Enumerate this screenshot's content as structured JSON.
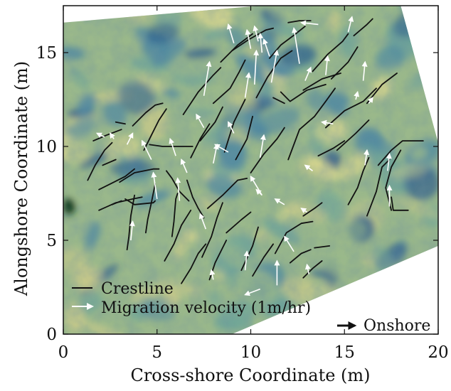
{
  "chart_data": {
    "type": "vector-field",
    "title": "",
    "xlabel": "Cross-shore Coordinate (m)",
    "ylabel": "Alongshore Coordinate (m)",
    "xlim": [
      0,
      20
    ],
    "ylim": [
      0,
      17.5
    ],
    "xticks": [
      "0",
      "5",
      "10",
      "15",
      "20"
    ],
    "yticks": [
      "0",
      "5",
      "10",
      "15"
    ],
    "background": {
      "description": "false-color image of bedforms, blue-green-yellow texture",
      "colors": [
        "#2e5d8c",
        "#4c87a2",
        "#6ba39a",
        "#9ab88b",
        "#c9c98a",
        "#d8d68f",
        "#10381f"
      ]
    },
    "image_domain": {
      "polygon": [
        [
          0,
          16.6
        ],
        [
          10.5,
          17.5
        ],
        [
          18,
          17.5
        ],
        [
          20,
          10.2
        ],
        [
          20,
          4.7
        ],
        [
          9,
          0
        ],
        [
          0,
          0
        ]
      ]
    },
    "legend": {
      "placement": "lower-left",
      "entries": [
        {
          "label": "Crestline",
          "style": "black-line"
        },
        {
          "label": "Migration velocity (1m/hr)",
          "style": "white-arrow"
        }
      ]
    },
    "annotation": {
      "label": "Onshore",
      "placement": "lower-right",
      "style": "black-arrow"
    },
    "colors": {
      "crestline": "#111111",
      "arrow": "#ffffff"
    },
    "crestlines": [
      [
        [
          9.0,
          15.1
        ],
        [
          9.9,
          15.7
        ],
        [
          10.8,
          16.2
        ],
        [
          11.2,
          16.3
        ]
      ],
      [
        [
          8.4,
          14.5
        ],
        [
          9.3,
          15.4
        ],
        [
          10.1,
          16.0
        ]
      ],
      [
        [
          11.0,
          14.7
        ],
        [
          11.6,
          15.4
        ],
        [
          12.4,
          16.0
        ],
        [
          12.9,
          16.4
        ]
      ],
      [
        [
          12.0,
          16.6
        ],
        [
          12.6,
          16.7
        ],
        [
          13.2,
          16.7
        ]
      ],
      [
        [
          13.3,
          14.0
        ],
        [
          14.1,
          14.9
        ],
        [
          14.9,
          15.6
        ],
        [
          15.2,
          16.0
        ]
      ],
      [
        [
          15.5,
          15.9
        ],
        [
          16.2,
          16.5
        ],
        [
          16.5,
          16.8
        ]
      ],
      [
        [
          14.3,
          13.6
        ],
        [
          15.2,
          14.5
        ],
        [
          15.7,
          15.3
        ]
      ],
      [
        [
          8.0,
          12.3
        ],
        [
          8.9,
          13.1
        ],
        [
          9.4,
          14.0
        ],
        [
          9.7,
          14.6
        ]
      ],
      [
        [
          6.4,
          11.7
        ],
        [
          7.2,
          12.9
        ],
        [
          8.0,
          13.8
        ],
        [
          8.4,
          14.2
        ]
      ],
      [
        [
          10.3,
          12.6
        ],
        [
          10.9,
          13.7
        ],
        [
          11.6,
          14.7
        ],
        [
          12.2,
          15.1
        ]
      ],
      [
        [
          11.6,
          12.9
        ],
        [
          12.1,
          12.4
        ],
        [
          13.0,
          13.0
        ],
        [
          14.0,
          13.3
        ]
      ],
      [
        [
          12.8,
          13.0
        ],
        [
          13.8,
          13.6
        ],
        [
          14.8,
          13.9
        ]
      ],
      [
        [
          12.0,
          9.3
        ],
        [
          12.6,
          10.9
        ],
        [
          13.4,
          11.6
        ],
        [
          14.0,
          12.4
        ],
        [
          14.5,
          13.1
        ]
      ],
      [
        [
          14.0,
          11.0
        ],
        [
          15.0,
          11.9
        ],
        [
          16.0,
          12.4
        ],
        [
          16.7,
          13.1
        ]
      ],
      [
        [
          16.2,
          12.3
        ],
        [
          17.0,
          13.3
        ],
        [
          17.8,
          13.9
        ]
      ],
      [
        [
          14.6,
          9.8
        ],
        [
          15.6,
          10.7
        ],
        [
          16.3,
          11.4
        ]
      ],
      [
        [
          13.6,
          9.5
        ],
        [
          14.4,
          9.9
        ],
        [
          15.0,
          10.3
        ]
      ],
      [
        [
          11.2,
          12.6
        ],
        [
          11.8,
          12.3
        ]
      ],
      [
        [
          16.8,
          9.0
        ],
        [
          17.5,
          9.8
        ],
        [
          18.1,
          10.3
        ],
        [
          19.2,
          10.3
        ]
      ],
      [
        [
          15.2,
          6.9
        ],
        [
          15.7,
          7.8
        ],
        [
          16.0,
          8.7
        ],
        [
          16.3,
          9.4
        ]
      ],
      [
        [
          16.2,
          6.3
        ],
        [
          16.7,
          7.6
        ],
        [
          17.0,
          8.9
        ],
        [
          17.4,
          9.3
        ]
      ],
      [
        [
          17.5,
          6.6
        ],
        [
          17.2,
          7.8
        ],
        [
          17.5,
          8.9
        ],
        [
          18.0,
          9.8
        ]
      ],
      [
        [
          17.5,
          7.3
        ],
        [
          17.6,
          6.6
        ],
        [
          18.4,
          6.6
        ]
      ],
      [
        [
          8.6,
          9.7
        ],
        [
          9.1,
          11.3
        ],
        [
          9.7,
          12.5
        ]
      ],
      [
        [
          9.2,
          9.3
        ],
        [
          9.8,
          10.4
        ],
        [
          10.1,
          11.6
        ]
      ],
      [
        [
          10.0,
          8.6
        ],
        [
          10.7,
          9.6
        ],
        [
          11.4,
          10.4
        ],
        [
          11.8,
          11.0
        ]
      ],
      [
        [
          7.3,
          10.3
        ],
        [
          8.1,
          11.3
        ],
        [
          8.5,
          12.1
        ]
      ],
      [
        [
          6.8,
          9.4
        ],
        [
          7.3,
          10.4
        ],
        [
          7.8,
          11.2
        ]
      ],
      [
        [
          4.6,
          10.1
        ],
        [
          5.3,
          10.0
        ],
        [
          6.4,
          10.0
        ],
        [
          6.9,
          10.0
        ]
      ],
      [
        [
          3.7,
          11.1
        ],
        [
          4.4,
          11.8
        ],
        [
          4.9,
          12.2
        ],
        [
          5.3,
          12.3
        ]
      ],
      [
        [
          4.3,
          9.8
        ],
        [
          4.7,
          10.6
        ],
        [
          5.1,
          11.4
        ],
        [
          5.5,
          12.0
        ]
      ],
      [
        [
          2.8,
          11.3
        ],
        [
          3.3,
          11.2
        ]
      ],
      [
        [
          1.6,
          10.3
        ],
        [
          2.3,
          10.6
        ],
        [
          3.1,
          10.9
        ]
      ],
      [
        [
          1.3,
          8.2
        ],
        [
          1.7,
          9.0
        ],
        [
          2.2,
          9.8
        ],
        [
          2.6,
          10.2
        ]
      ],
      [
        [
          2.1,
          9.0
        ],
        [
          2.8,
          9.3
        ]
      ],
      [
        [
          1.9,
          7.7
        ],
        [
          2.5,
          8.0
        ],
        [
          3.3,
          8.4
        ],
        [
          3.8,
          8.8
        ]
      ],
      [
        [
          3.0,
          8.1
        ],
        [
          3.8,
          8.6
        ],
        [
          4.8,
          8.8
        ],
        [
          5.1,
          8.8
        ]
      ],
      [
        [
          1.9,
          6.6
        ],
        [
          2.8,
          7.0
        ],
        [
          3.7,
          7.2
        ],
        [
          4.2,
          7.3
        ]
      ],
      [
        [
          2.6,
          6.9
        ],
        [
          3.1,
          7.1
        ]
      ],
      [
        [
          3.3,
          7.2
        ],
        [
          3.8,
          6.9
        ],
        [
          4.8,
          7.0
        ],
        [
          4.9,
          7.1
        ]
      ],
      [
        [
          5.5,
          8.7
        ],
        [
          5.8,
          8.3
        ],
        [
          6.2,
          7.6
        ],
        [
          6.7,
          7.1
        ]
      ],
      [
        [
          6.6,
          8.2
        ],
        [
          6.9,
          7.3
        ],
        [
          7.2,
          6.7
        ],
        [
          7.5,
          6.2
        ]
      ],
      [
        [
          5.8,
          5.2
        ],
        [
          5.9,
          6.0
        ],
        [
          6.0,
          7.2
        ],
        [
          6.1,
          7.5
        ]
      ],
      [
        [
          4.4,
          5.4
        ],
        [
          4.5,
          6.1
        ],
        [
          4.7,
          7.0
        ],
        [
          4.9,
          8.0
        ]
      ],
      [
        [
          3.4,
          4.5
        ],
        [
          3.5,
          5.2
        ],
        [
          3.6,
          6.3
        ],
        [
          3.8,
          7.4
        ]
      ],
      [
        [
          5.4,
          3.9
        ],
        [
          5.9,
          4.8
        ],
        [
          6.3,
          5.8
        ],
        [
          6.8,
          6.6
        ]
      ],
      [
        [
          7.4,
          4.1
        ],
        [
          7.9,
          5.2
        ],
        [
          8.2,
          6.2
        ],
        [
          8.5,
          7.0
        ]
      ],
      [
        [
          7.7,
          6.7
        ],
        [
          8.5,
          7.4
        ],
        [
          9.3,
          8.2
        ],
        [
          9.8,
          8.3
        ]
      ],
      [
        [
          8.7,
          5.4
        ],
        [
          9.5,
          6.1
        ],
        [
          10.0,
          6.5
        ]
      ],
      [
        [
          6.3,
          2.7
        ],
        [
          6.8,
          3.5
        ],
        [
          7.2,
          4.3
        ],
        [
          7.6,
          4.8
        ]
      ],
      [
        [
          7.8,
          2.9
        ],
        [
          8.1,
          3.8
        ],
        [
          8.7,
          5.0
        ]
      ],
      [
        [
          9.5,
          3.4
        ],
        [
          10.1,
          4.7
        ],
        [
          10.4,
          5.7
        ]
      ],
      [
        [
          10.1,
          3.1
        ],
        [
          10.7,
          4.1
        ],
        [
          11.2,
          4.8
        ]
      ],
      [
        [
          11.3,
          4.3
        ],
        [
          11.9,
          5.4
        ],
        [
          12.7,
          5.9
        ],
        [
          13.3,
          6.0
        ]
      ],
      [
        [
          12.1,
          3.8
        ],
        [
          12.7,
          4.3
        ],
        [
          13.2,
          4.5
        ]
      ],
      [
        [
          12.8,
          3.0
        ],
        [
          13.3,
          3.5
        ],
        [
          13.8,
          3.9
        ]
      ],
      [
        [
          13.4,
          4.6
        ],
        [
          14.2,
          4.7
        ]
      ],
      [
        [
          12.8,
          6.3
        ],
        [
          13.4,
          6.7
        ],
        [
          13.8,
          7.0
        ]
      ]
    ],
    "arrows": [
      [
        9.1,
        15.5,
        -0.3,
        1.0
      ],
      [
        10.0,
        15.2,
        -0.2,
        1.0
      ],
      [
        10.4,
        15.6,
        -0.2,
        0.8
      ],
      [
        10.6,
        15.0,
        -0.1,
        1.0
      ],
      [
        11.0,
        14.8,
        -0.3,
        0.9
      ],
      [
        12.6,
        14.4,
        -0.3,
        1.9
      ],
      [
        13.6,
        16.5,
        -0.9,
        0.1
      ],
      [
        15.2,
        16.1,
        0.2,
        0.8
      ],
      [
        12.9,
        13.5,
        0.3,
        0.7
      ],
      [
        14.0,
        13.8,
        0.1,
        1.0
      ],
      [
        16.0,
        13.5,
        0.1,
        1.0
      ],
      [
        7.5,
        12.7,
        0.3,
        1.8
      ],
      [
        9.7,
        12.6,
        0.2,
        1.3
      ],
      [
        10.2,
        13.3,
        0.1,
        1.8
      ],
      [
        11.1,
        13.4,
        0.3,
        1.7
      ],
      [
        15.6,
        12.5,
        0.1,
        0.4
      ],
      [
        16.3,
        12.3,
        0.2,
        0.3
      ],
      [
        14.4,
        11.2,
        -0.6,
        0.1
      ],
      [
        7.5,
        11.0,
        -0.4,
        0.7
      ],
      [
        9.1,
        10.7,
        -0.3,
        0.6
      ],
      [
        8.0,
        9.1,
        0.2,
        1.0
      ],
      [
        8.8,
        9.7,
        -0.7,
        0.4
      ],
      [
        10.5,
        9.4,
        0.2,
        1.2
      ],
      [
        10.6,
        7.4,
        -0.3,
        0.3
      ],
      [
        10.6,
        7.4,
        -0.6,
        1.0
      ],
      [
        6.0,
        9.5,
        -0.3,
        0.9
      ],
      [
        4.7,
        9.3,
        -0.5,
        1.0
      ],
      [
        3.4,
        10.1,
        0.3,
        0.6
      ],
      [
        2.7,
        10.4,
        -0.2,
        0.3
      ],
      [
        2.2,
        10.5,
        -0.4,
        0.2
      ],
      [
        5.0,
        7.2,
        -0.2,
        1.4
      ],
      [
        6.2,
        7.1,
        -0.1,
        1.2
      ],
      [
        6.6,
        8.6,
        -0.3,
        0.7
      ],
      [
        3.6,
        5.0,
        0.1,
        1.0
      ],
      [
        7.6,
        5.6,
        -0.3,
        0.8
      ],
      [
        13.3,
        8.7,
        -0.4,
        0.3
      ],
      [
        16.1,
        9.0,
        0.1,
        0.8
      ],
      [
        17.3,
        8.7,
        0.1,
        0.9
      ],
      [
        17.4,
        6.8,
        0.0,
        1.1
      ],
      [
        13.0,
        6.5,
        -0.3,
        0.2
      ],
      [
        11.8,
        6.9,
        -0.5,
        0.3
      ],
      [
        9.7,
        3.4,
        0.1,
        1.0
      ],
      [
        11.4,
        2.6,
        0.0,
        1.3
      ],
      [
        12.3,
        4.4,
        -0.5,
        0.8
      ],
      [
        8.0,
        2.9,
        -0.1,
        0.5
      ],
      [
        13.1,
        3.2,
        -0.1,
        0.5
      ],
      [
        10.5,
        2.4,
        -0.8,
        -0.3
      ]
    ]
  }
}
